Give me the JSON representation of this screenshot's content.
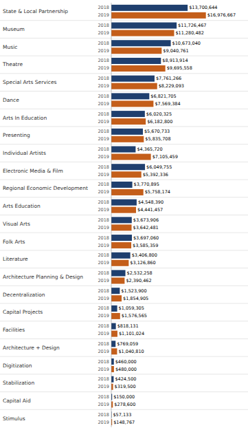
{
  "chart_data": {
    "type": "bar",
    "orientation": "horizontal",
    "data_labels": true,
    "tick_labels": false,
    "grid": false,
    "categories": [
      "State & Local Partnership",
      "Museum",
      "Music",
      "Theatre",
      "Special Arts Services",
      "Dance",
      "Arts In Education",
      "Presenting",
      "Individual Artists",
      "Electronic Media & Film",
      "Regional Economic Development",
      "Arts Education",
      "Visual Arts",
      "Folk Arts",
      "Literature",
      "Architecture Planning & Design",
      "Decentralization",
      "Capital Projects",
      "Facilities",
      "Architecture + Design",
      "Digitization",
      "Stabilization",
      "Capital Aid",
      "Stimulus"
    ],
    "xlim": [
      0,
      18000000
    ],
    "series": [
      {
        "name": "2018",
        "color": "#1f3f6e",
        "values": [
          13700644,
          11726467,
          10673040,
          8913914,
          7761266,
          6821705,
          6020325,
          5670733,
          4365720,
          6049755,
          3770895,
          4548390,
          3673906,
          3697060,
          3406800,
          2532258,
          1523900,
          1059305,
          818131,
          769059,
          460000,
          424500,
          150000,
          57133
        ],
        "value_labels": [
          "$13,700,644",
          "$11,726,467",
          "$10,673,040",
          "$8,913,914",
          "$7,761,266",
          "$6,821,705",
          "$6,020,325",
          "$5,670,733",
          "$4,365,720",
          "$6,049,755",
          "$3,770,895",
          "$4,548,390",
          "$3,673,906",
          "$3,697,060",
          "$3,406,800",
          "$2,532,258",
          "$1,523,900",
          "$1,059,305",
          "$818,131",
          "$769,059",
          "$460,000",
          "$424,500",
          "$150,000",
          "$57,133"
        ]
      },
      {
        "name": "2019",
        "color": "#c45e1a",
        "values": [
          16976667,
          11280482,
          9040761,
          9695558,
          8229093,
          7569384,
          6182800,
          5835708,
          7105459,
          5392336,
          5758174,
          4441457,
          3642481,
          3585359,
          3126860,
          2390462,
          1854905,
          1576565,
          1101024,
          1040810,
          480000,
          319500,
          278600,
          148767
        ],
        "value_labels": [
          "$16,976,667",
          "$11,280,482",
          "$9,040,761",
          "$9,695,558",
          "$8,229,093",
          "$7,569,384",
          "$6,182,800",
          "$5,835,708",
          "$7,105,459",
          "$5,392,336",
          "$5,758,174",
          "$4,441,457",
          "$3,642,481",
          "$3,585,359",
          "$3,126,860",
          "$2,390,462",
          "$1,854,905",
          "$1,576,565",
          "$1,101,024",
          "$1,040,810",
          "$480,000",
          "$319,500",
          "$278,600",
          "$148,767"
        ]
      }
    ]
  }
}
